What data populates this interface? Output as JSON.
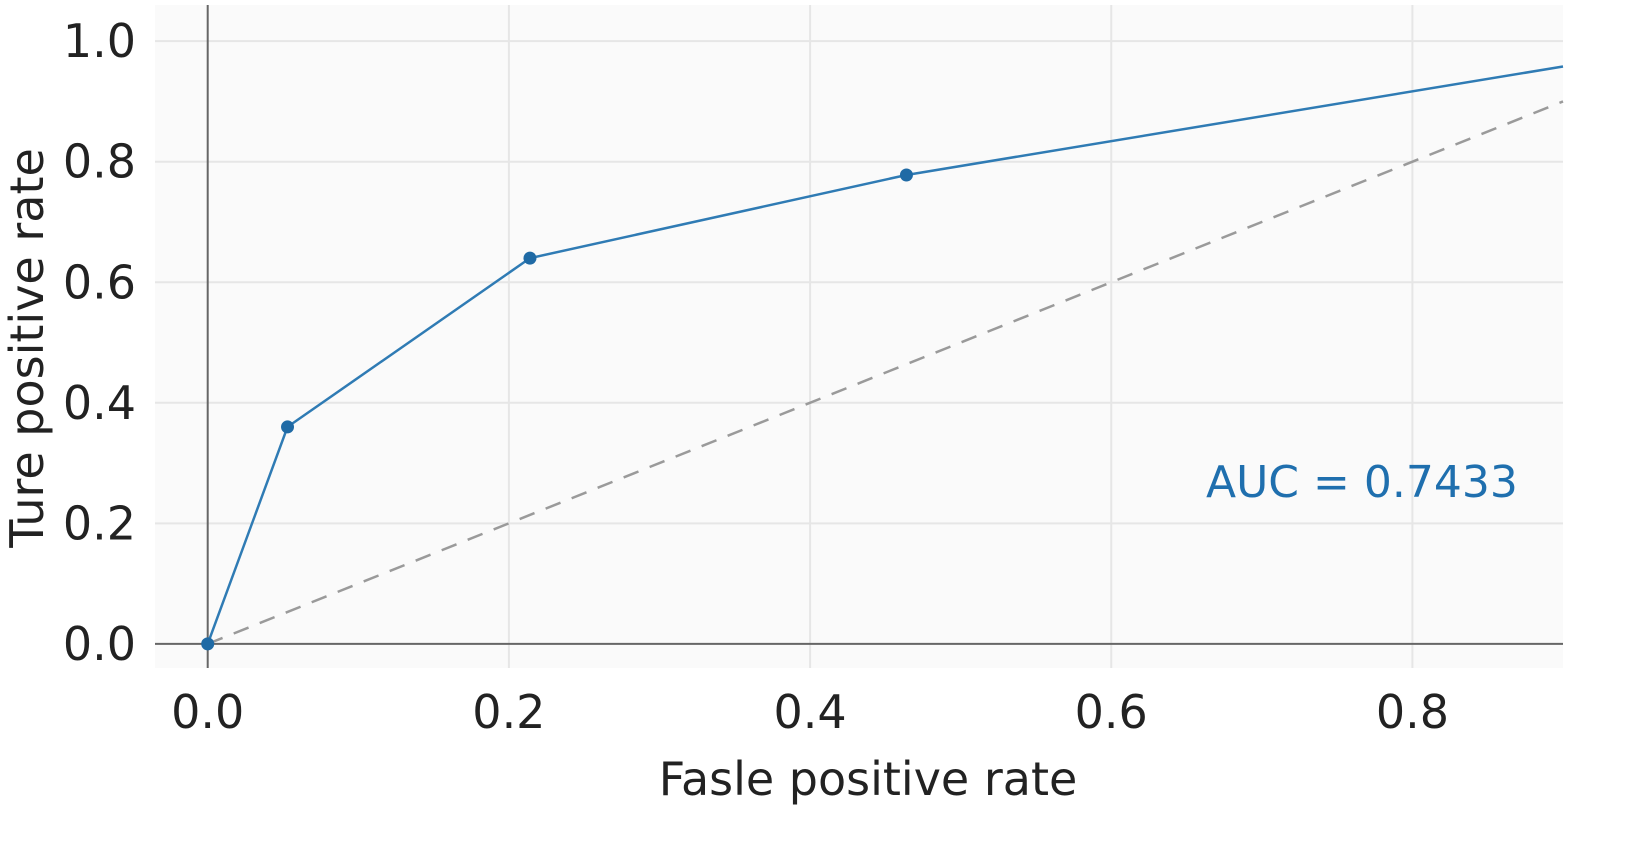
{
  "chart_data": {
    "type": "line",
    "xlabel": "Fasle positive rate",
    "ylabel": "Ture positive rate",
    "xlim": [
      -0.035,
      0.9
    ],
    "ylim": [
      -0.04,
      1.06
    ],
    "x_ticks": [
      "0.0",
      "0.2",
      "0.4",
      "0.6",
      "0.8"
    ],
    "x_tick_values": [
      0.0,
      0.2,
      0.4,
      0.6,
      0.8
    ],
    "y_ticks": [
      "0.0",
      "0.2",
      "0.4",
      "0.6",
      "0.8",
      "1.0"
    ],
    "y_tick_values": [
      0.0,
      0.2,
      0.4,
      0.6,
      0.8,
      1.0
    ],
    "grid": true,
    "series": [
      {
        "x": [
          0.0,
          0.053,
          0.214,
          0.464,
          0.9
        ],
        "y": [
          0.0,
          0.36,
          0.64,
          0.778,
          0.958
        ],
        "markers": [
          true,
          true,
          true,
          true,
          false
        ]
      }
    ],
    "reference_line": {
      "x": [
        0.0,
        0.9
      ],
      "y": [
        0.0,
        0.9
      ]
    },
    "annotation": {
      "text": "AUC = 0.7433",
      "x": 0.87,
      "y": 0.27
    },
    "colors": {
      "roc": "#2f7bb4",
      "marker": "#1f6aa5",
      "reference": "#9a9a9a",
      "annotation": "#1f6fae"
    }
  }
}
